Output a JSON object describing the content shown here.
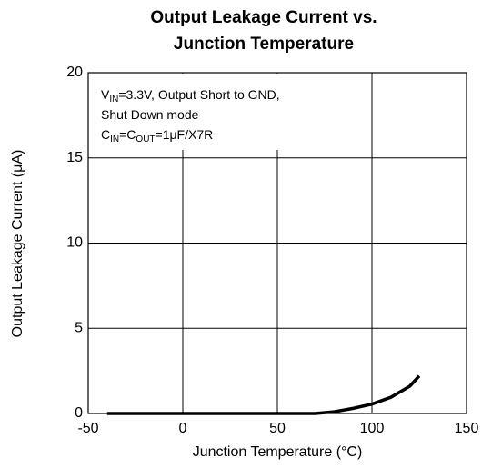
{
  "chart_data": {
    "type": "line",
    "title": [
      "Output Leakage Current vs.",
      "Junction Temperature"
    ],
    "annotation": [
      [
        "V",
        "IN",
        "=3.3V, Output Short to GND,"
      ],
      [
        "Shut Down mode"
      ],
      [
        "C",
        "IN",
        "=C",
        "OUT",
        "=1μF/X7R"
      ]
    ],
    "xlabel": "Junction Temperature (°C)",
    "ylabel": "Output Leakage Current (μA)",
    "xlim": [
      -50,
      150
    ],
    "xticks": [
      -50,
      0,
      50,
      100,
      150
    ],
    "ylim": [
      0,
      20
    ],
    "yticks": [
      0,
      5,
      10,
      15,
      20
    ],
    "grid": true,
    "series": [
      {
        "color": "#000000",
        "x": [
          -40,
          0,
          50,
          70,
          80,
          90,
          100,
          110,
          120,
          125
        ],
        "values": [
          0,
          0,
          0,
          0,
          0.1,
          0.3,
          0.55,
          0.95,
          1.6,
          2.2
        ]
      }
    ]
  }
}
